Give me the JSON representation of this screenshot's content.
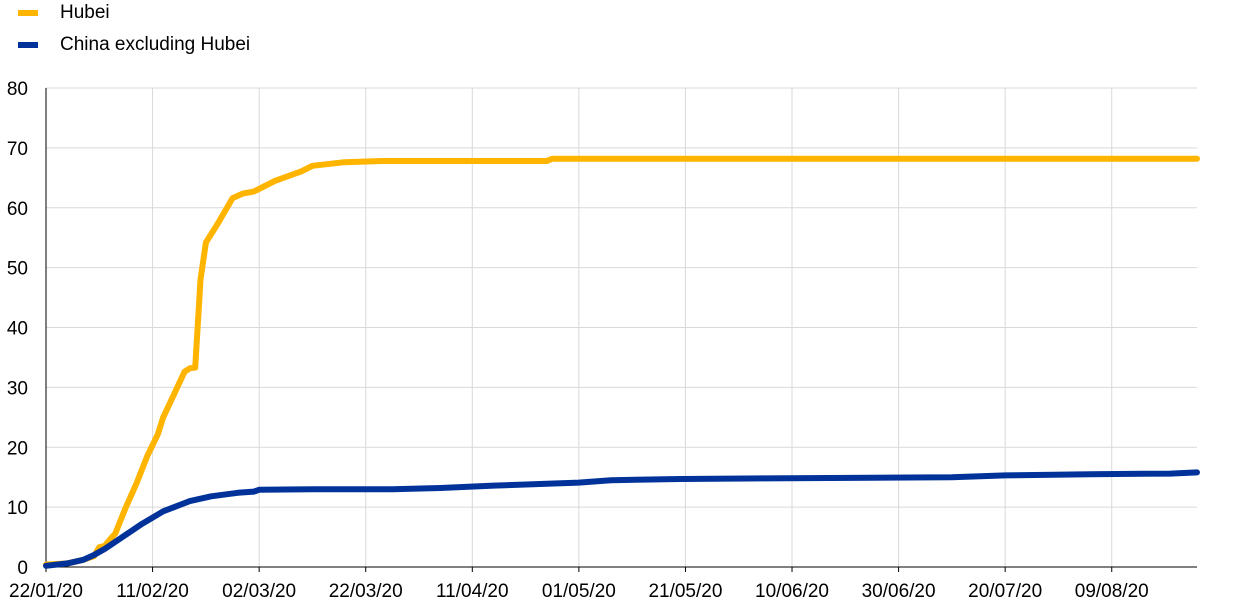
{
  "legend": {
    "items": [
      {
        "label": "Hubei",
        "color": "#FFB400"
      },
      {
        "label": "China excluding Hubei",
        "color": "#003299"
      }
    ]
  },
  "chart_data": {
    "type": "line",
    "title": "",
    "xlabel": "",
    "ylabel": "",
    "ylim": [
      0,
      80
    ],
    "yticks": [
      0,
      10,
      20,
      30,
      40,
      50,
      60,
      70,
      80
    ],
    "x_tick_labels": [
      "22/01/20",
      "11/02/20",
      "02/03/20",
      "22/03/20",
      "11/04/20",
      "01/05/20",
      "21/05/20",
      "10/06/20",
      "30/06/20",
      "20/07/20",
      "09/08/20"
    ],
    "grid": "vertical and horizontal",
    "legend_position": "top-left",
    "series": [
      {
        "name": "Hubei",
        "color": "#FFB400",
        "points": [
          [
            "2020-01-22",
            0.4
          ],
          [
            "2020-01-26",
            0.6
          ],
          [
            "2020-01-29",
            1.2
          ],
          [
            "2020-01-31",
            1.8
          ],
          [
            "2020-02-01",
            3.3
          ],
          [
            "2020-02-02",
            3.5
          ],
          [
            "2020-02-03",
            4.6
          ],
          [
            "2020-02-04",
            5.6
          ],
          [
            "2020-02-06",
            10.0
          ],
          [
            "2020-02-08",
            14.0
          ],
          [
            "2020-02-10",
            18.5
          ],
          [
            "2020-02-12",
            22.2
          ],
          [
            "2020-02-13",
            25.0
          ],
          [
            "2020-02-15",
            28.8
          ],
          [
            "2020-02-17",
            32.6
          ],
          [
            "2020-02-18",
            33.2
          ],
          [
            "2020-02-19",
            33.3
          ],
          [
            "2020-02-20",
            48.0
          ],
          [
            "2020-02-21",
            54.2
          ],
          [
            "2020-02-23",
            57.0
          ],
          [
            "2020-02-26",
            61.6
          ],
          [
            "2020-02-28",
            62.4
          ],
          [
            "2020-03-01",
            62.7
          ],
          [
            "2020-03-05",
            64.5
          ],
          [
            "2020-03-10",
            66.1
          ],
          [
            "2020-03-12",
            67.0
          ],
          [
            "2020-03-18",
            67.6
          ],
          [
            "2020-03-25",
            67.8
          ],
          [
            "2020-04-13",
            67.8
          ],
          [
            "2020-04-25",
            67.8
          ],
          [
            "2020-04-26",
            68.2
          ],
          [
            "2020-08-25",
            68.2
          ]
        ]
      },
      {
        "name": "China excluding Hubei",
        "color": "#003299",
        "points": [
          [
            "2020-01-22",
            0.2
          ],
          [
            "2020-01-26",
            0.6
          ],
          [
            "2020-01-29",
            1.2
          ],
          [
            "2020-01-31",
            2.0
          ],
          [
            "2020-02-02",
            3.0
          ],
          [
            "2020-02-05",
            4.8
          ],
          [
            "2020-02-09",
            7.2
          ],
          [
            "2020-02-13",
            9.3
          ],
          [
            "2020-02-18",
            11.0
          ],
          [
            "2020-02-22",
            11.8
          ],
          [
            "2020-02-27",
            12.4
          ],
          [
            "2020-03-01",
            12.6
          ],
          [
            "2020-03-02",
            12.9
          ],
          [
            "2020-03-12",
            13.0
          ],
          [
            "2020-03-27",
            13.0
          ],
          [
            "2020-04-05",
            13.2
          ],
          [
            "2020-04-15",
            13.6
          ],
          [
            "2020-04-25",
            13.9
          ],
          [
            "2020-05-01",
            14.1
          ],
          [
            "2020-05-07",
            14.5
          ],
          [
            "2020-05-20",
            14.7
          ],
          [
            "2020-06-05",
            14.8
          ],
          [
            "2020-06-25",
            14.9
          ],
          [
            "2020-07-10",
            15.0
          ],
          [
            "2020-07-20",
            15.3
          ],
          [
            "2020-08-05",
            15.5
          ],
          [
            "2020-08-20",
            15.6
          ],
          [
            "2020-08-25",
            15.8
          ]
        ]
      }
    ]
  }
}
